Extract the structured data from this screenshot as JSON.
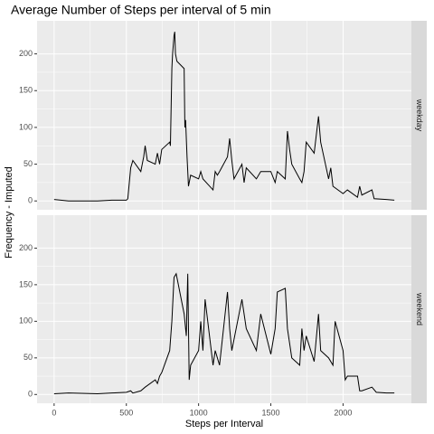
{
  "chart_data": {
    "type": "line",
    "title": "Average Number of Steps per interval of 5 min",
    "xlabel": "Steps per Interval",
    "ylabel": "Frequency - Imputed",
    "xlim": [
      -118,
      2473
    ],
    "xticks": [
      0,
      500,
      1000,
      1500,
      2000
    ],
    "ylim": [
      -12,
      245
    ],
    "yticks": [
      0,
      50,
      100,
      150,
      200
    ],
    "grid": true,
    "series": [
      {
        "name": "weekday",
        "color": "#000000",
        "x": [
          0,
          100,
          200,
          300,
          400,
          500,
          510,
          530,
          545,
          600,
          620,
          630,
          645,
          700,
          715,
          730,
          745,
          800,
          805,
          815,
          820,
          830,
          835,
          840,
          850,
          900,
          905,
          910,
          920,
          930,
          945,
          1000,
          1015,
          1030,
          1100,
          1115,
          1130,
          1145,
          1200,
          1215,
          1230,
          1245,
          1300,
          1315,
          1330,
          1400,
          1430,
          1500,
          1530,
          1545,
          1600,
          1615,
          1630,
          1645,
          1700,
          1715,
          1730,
          1745,
          1800,
          1815,
          1830,
          1845,
          1900,
          1915,
          1930,
          2000,
          2030,
          2100,
          2115,
          2130,
          2200,
          2215,
          2300,
          2355
        ],
        "values": [
          2,
          0,
          0,
          0,
          1,
          1,
          3,
          45,
          55,
          40,
          60,
          75,
          55,
          50,
          65,
          50,
          70,
          80,
          75,
          180,
          200,
          225,
          230,
          200,
          190,
          180,
          100,
          110,
          60,
          20,
          35,
          30,
          40,
          30,
          15,
          40,
          35,
          40,
          60,
          85,
          55,
          30,
          50,
          25,
          45,
          30,
          40,
          40,
          25,
          40,
          30,
          95,
          70,
          50,
          30,
          25,
          40,
          80,
          65,
          90,
          115,
          80,
          30,
          45,
          20,
          10,
          15,
          5,
          20,
          8,
          15,
          3,
          2,
          1
        ]
      },
      {
        "name": "weekend",
        "color": "#000000",
        "x": [
          0,
          100,
          300,
          400,
          500,
          530,
          545,
          600,
          630,
          700,
          715,
          730,
          745,
          800,
          815,
          830,
          845,
          900,
          915,
          925,
          935,
          945,
          1000,
          1015,
          1030,
          1045,
          1100,
          1115,
          1130,
          1145,
          1200,
          1215,
          1230,
          1300,
          1330,
          1400,
          1430,
          1500,
          1530,
          1545,
          1600,
          1615,
          1630,
          1645,
          1700,
          1715,
          1730,
          1745,
          1800,
          1830,
          1845,
          1900,
          1930,
          1945,
          2000,
          2015,
          2030,
          2100,
          2115,
          2130,
          2200,
          2230,
          2300,
          2355
        ],
        "values": [
          1,
          2,
          1,
          2,
          3,
          5,
          2,
          5,
          10,
          20,
          15,
          25,
          30,
          60,
          100,
          160,
          165,
          110,
          80,
          165,
          20,
          40,
          60,
          100,
          60,
          130,
          40,
          60,
          50,
          40,
          140,
          90,
          60,
          130,
          90,
          60,
          110,
          55,
          90,
          140,
          145,
          90,
          70,
          50,
          40,
          90,
          60,
          80,
          45,
          110,
          60,
          50,
          40,
          100,
          60,
          20,
          25,
          25,
          5,
          5,
          10,
          3,
          2,
          2
        ]
      }
    ]
  }
}
